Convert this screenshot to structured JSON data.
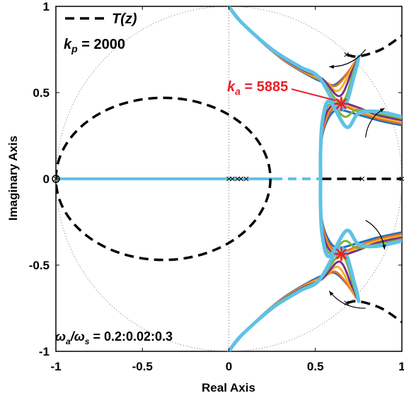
{
  "chart_data": {
    "type": "line",
    "title": "",
    "xlabel": "Real Axis",
    "ylabel": "Imaginary Axis",
    "xlim": [
      -1,
      1
    ],
    "ylim": [
      -1,
      1
    ],
    "xticks": [
      "-1",
      "-0.5",
      "0",
      "0.5",
      "1"
    ],
    "yticks": [
      "1",
      "0.5",
      "0",
      "-0.5",
      "-1"
    ],
    "grid": false,
    "unit_circle": true,
    "legend": {
      "placement": "top-left",
      "entries": [
        {
          "name": "T(z)",
          "style": "dashed",
          "color": "#000000"
        }
      ]
    },
    "annotations": {
      "kp_label": "k",
      "kp_sub": "p",
      "kp_value": " = 2000",
      "ka_label": "k",
      "ka_sub": "a",
      "ka_value": " = 5885",
      "wa_label": "ω",
      "wa_sub": "a",
      "ws_label": "/ω",
      "ws_sub": "s",
      "ratio_value": " = 0.2:0.02:0.3"
    },
    "series_colors": [
      "#1f6fbf",
      "#e8731c",
      "#f2b32a",
      "#7b2d8e",
      "#7fb03c",
      "#5ec2e6"
    ],
    "highlight_color": "#e8202a",
    "series": [
      {
        "offset": 0.05,
        "upper_branch": [
          [
            0.0,
            1.0
          ],
          [
            0.12,
            0.86
          ],
          [
            0.3,
            0.7
          ],
          [
            0.46,
            0.6
          ],
          [
            0.57,
            0.55
          ],
          [
            0.62,
            0.55
          ],
          [
            0.69,
            0.62
          ],
          [
            0.75,
            0.71
          ]
        ],
        "right_branch": [
          [
            1.0,
            0.31
          ],
          [
            0.86,
            0.34
          ],
          [
            0.72,
            0.38
          ],
          [
            0.63,
            0.4
          ],
          [
            0.58,
            0.36
          ],
          [
            0.54,
            0.25
          ],
          [
            0.53,
            0.1
          ],
          [
            0.53,
            0.0
          ]
        ]
      },
      {
        "offset": 0.04,
        "upper_branch": [
          [
            0.0,
            1.0
          ],
          [
            0.11,
            0.87
          ],
          [
            0.29,
            0.71
          ],
          [
            0.45,
            0.61
          ],
          [
            0.56,
            0.56
          ],
          [
            0.62,
            0.54
          ],
          [
            0.69,
            0.62
          ],
          [
            0.75,
            0.71
          ]
        ],
        "right_branch": [
          [
            1.0,
            0.32
          ],
          [
            0.86,
            0.35
          ],
          [
            0.72,
            0.4
          ],
          [
            0.64,
            0.43
          ],
          [
            0.58,
            0.38
          ],
          [
            0.54,
            0.26
          ],
          [
            0.53,
            0.11
          ],
          [
            0.53,
            0.0
          ]
        ]
      },
      {
        "offset": 0.03,
        "upper_branch": [
          [
            0.0,
            1.0
          ],
          [
            0.1,
            0.88
          ],
          [
            0.28,
            0.72
          ],
          [
            0.44,
            0.62
          ],
          [
            0.55,
            0.57
          ],
          [
            0.63,
            0.51
          ],
          [
            0.7,
            0.62
          ],
          [
            0.75,
            0.71
          ]
        ],
        "right_branch": [
          [
            1.0,
            0.33
          ],
          [
            0.86,
            0.36
          ],
          [
            0.72,
            0.41
          ],
          [
            0.65,
            0.46
          ],
          [
            0.58,
            0.4
          ],
          [
            0.54,
            0.28
          ],
          [
            0.53,
            0.12
          ],
          [
            0.53,
            0.0
          ]
        ]
      },
      {
        "offset": 0.02,
        "upper_branch": [
          [
            0.0,
            1.0
          ],
          [
            0.09,
            0.89
          ],
          [
            0.27,
            0.73
          ],
          [
            0.43,
            0.63
          ],
          [
            0.54,
            0.58
          ],
          [
            0.64,
            0.48
          ],
          [
            0.71,
            0.62
          ],
          [
            0.75,
            0.71
          ]
        ],
        "right_branch": [
          [
            1.0,
            0.34
          ],
          [
            0.86,
            0.37
          ],
          [
            0.73,
            0.42
          ],
          [
            0.65,
            0.44
          ],
          [
            0.58,
            0.41
          ],
          [
            0.54,
            0.29
          ],
          [
            0.53,
            0.13
          ],
          [
            0.53,
            0.0
          ]
        ]
      },
      {
        "offset": 0.01,
        "upper_branch": [
          [
            0.0,
            1.0
          ],
          [
            0.08,
            0.9
          ],
          [
            0.26,
            0.74
          ],
          [
            0.42,
            0.64
          ],
          [
            0.53,
            0.58
          ],
          [
            0.65,
            0.44
          ],
          [
            0.72,
            0.62
          ],
          [
            0.75,
            0.71
          ]
        ],
        "right_branch": [
          [
            1.0,
            0.35
          ],
          [
            0.86,
            0.38
          ],
          [
            0.74,
            0.4
          ],
          [
            0.67,
            0.36
          ],
          [
            0.58,
            0.43
          ],
          [
            0.54,
            0.31
          ],
          [
            0.53,
            0.14
          ],
          [
            0.53,
            0.0
          ]
        ]
      },
      {
        "offset": 0.0,
        "upper_branch": [
          [
            0.0,
            1.0
          ],
          [
            0.07,
            0.91
          ],
          [
            0.25,
            0.75
          ],
          [
            0.41,
            0.65
          ],
          [
            0.52,
            0.59
          ],
          [
            0.65,
            0.4
          ],
          [
            0.73,
            0.62
          ],
          [
            0.75,
            0.71
          ]
        ],
        "right_branch": [
          [
            1.0,
            0.36
          ],
          [
            0.86,
            0.39
          ],
          [
            0.75,
            0.38
          ],
          [
            0.68,
            0.3
          ],
          [
            0.58,
            0.45
          ],
          [
            0.54,
            0.33
          ],
          [
            0.53,
            0.16
          ],
          [
            0.53,
            0.0
          ]
        ]
      }
    ],
    "real_axis_locus": {
      "from": -1.0,
      "to": 0.26
    },
    "t_curve": {
      "ellipse_center": [
        -0.38,
        0.0
      ],
      "ellipse_rx": 0.62,
      "ellipse_ry": 0.47,
      "extra_pieces": [
        [
          [
            0.54,
            0.0
          ],
          [
            1.0,
            0.0
          ]
        ],
        [
          [
            0.68,
            0.72
          ],
          [
            0.75,
            0.71
          ],
          [
            0.88,
            0.75
          ],
          [
            1.0,
            0.83
          ]
        ],
        [
          [
            0.68,
            -0.72
          ],
          [
            0.75,
            -0.71
          ],
          [
            0.88,
            -0.75
          ],
          [
            1.0,
            -0.83
          ]
        ]
      ]
    },
    "poles": [
      [
        -1.0,
        0.0
      ],
      [
        0.0,
        0.0
      ],
      [
        0.02,
        0.0
      ],
      [
        0.05,
        0.0
      ],
      [
        0.07,
        0.0
      ],
      [
        0.1,
        0.0
      ],
      [
        0.68,
        0.72
      ],
      [
        0.68,
        -0.72
      ],
      [
        0.77,
        0.0
      ],
      [
        1.0,
        0.0
      ]
    ],
    "highlight_points": [
      [
        0.65,
        0.435
      ],
      [
        0.65,
        -0.435
      ]
    ],
    "arrows": [
      {
        "from": [
          0.79,
          0.75
        ],
        "to": [
          0.58,
          0.65
        ]
      },
      {
        "from": [
          0.79,
          -0.75
        ],
        "to": [
          0.58,
          -0.65
        ]
      },
      {
        "from": [
          0.79,
          0.24
        ],
        "to": [
          0.9,
          0.41
        ]
      },
      {
        "from": [
          0.79,
          -0.24
        ],
        "to": [
          0.9,
          -0.41
        ]
      }
    ]
  }
}
